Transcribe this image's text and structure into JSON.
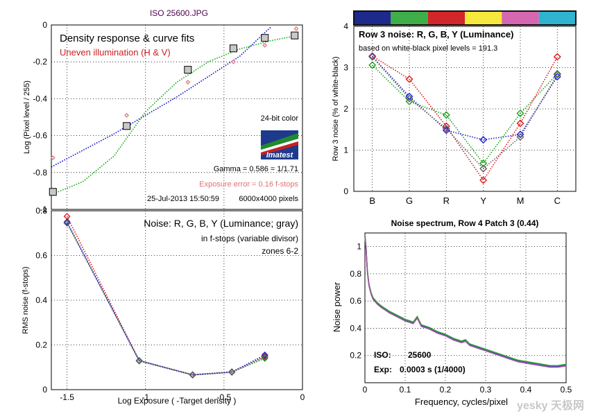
{
  "figure_title": "ISO 25600.JPG",
  "watermark": "yesky 天极网",
  "chart_data": [
    {
      "id": "density",
      "type": "scatter",
      "title": "Density response & curve fits",
      "subtitle": "Uneven illumination (H & V)",
      "xlabel": "",
      "ylabel": "Log (Pixel level / 255)",
      "xlim": [
        -1.6,
        0
      ],
      "ylim": [
        -1,
        0
      ],
      "xticks": [
        -1.5,
        -1,
        -0.5,
        0
      ],
      "yticks": [
        0,
        -0.2,
        -0.4,
        -0.6,
        -0.8,
        -1
      ],
      "grid": true,
      "points": {
        "name": "Measured zones",
        "x": [
          -1.59,
          -1.12,
          -0.73,
          -0.44,
          -0.24,
          -0.05
        ],
        "y": [
          -0.905,
          -0.548,
          -0.243,
          -0.127,
          -0.07,
          -0.057
        ]
      },
      "uneven_points": {
        "x": [
          -1.59,
          -1.12,
          -0.73,
          -0.44,
          -0.24,
          -0.04
        ],
        "y": [
          -0.72,
          -0.49,
          -0.31,
          -0.2,
          -0.11,
          -0.02
        ]
      },
      "fits": [
        {
          "style": "dotted",
          "color": "#0000cc",
          "x": [
            -1.6,
            -1.2,
            -0.8,
            -0.4,
            -0.2
          ],
          "y": [
            -0.77,
            -0.59,
            -0.39,
            -0.17,
            -0.01
          ]
        },
        {
          "style": "dotted",
          "color": "#00aa00",
          "x": [
            -1.6,
            -1.4,
            -1.2,
            -1.0,
            -0.8,
            -0.6,
            -0.4,
            -0.2,
            -0.05
          ],
          "y": [
            -0.92,
            -0.85,
            -0.71,
            -0.47,
            -0.31,
            -0.2,
            -0.13,
            -0.085,
            -0.06
          ]
        }
      ],
      "annotations": {
        "color_depth": "24-bit color",
        "gamma": "Gamma = 0.586 = 1/1.71",
        "exposure_error": "Exposure error = 0.16 f-stops",
        "timestamp": "25-Jul-2013 15:50:59",
        "pixels": "6000x4000 pixels",
        "logo": "Imatest"
      }
    },
    {
      "id": "row3",
      "type": "line",
      "title": "Row 3 noise: R, G, B, Y (Luminance)",
      "subtitle": "based on white-black pixel levels = 191.3",
      "xlabel": "",
      "ylabel": "Row 3 noise (% of white-black)",
      "categories": [
        "B",
        "G",
        "R",
        "Y",
        "M",
        "C"
      ],
      "ylim": [
        0,
        4
      ],
      "yticks": [
        0,
        1,
        2,
        3,
        4
      ],
      "grid": true,
      "swatch_colors": [
        "#1d2a8c",
        "#3fae49",
        "#d3262a",
        "#f6e83c",
        "#d566b0",
        "#2fb3cf"
      ],
      "series": [
        {
          "name": "R",
          "color": "#e01818",
          "values": [
            3.28,
            2.72,
            1.58,
            0.27,
            1.65,
            3.26
          ]
        },
        {
          "name": "G",
          "color": "#18a018",
          "values": [
            3.06,
            2.18,
            1.85,
            0.68,
            1.89,
            2.85
          ]
        },
        {
          "name": "B",
          "color": "#2020d8",
          "values": [
            3.27,
            2.3,
            1.48,
            1.25,
            1.38,
            2.78
          ]
        },
        {
          "name": "Y",
          "color": "#606060",
          "values": [
            3.26,
            2.25,
            1.52,
            0.55,
            1.32,
            2.83
          ]
        }
      ]
    },
    {
      "id": "fstop",
      "type": "line",
      "title": "Noise: R, G, B, Y (Luminance; gray)",
      "subtitle": "in f-stops (variable divisor)",
      "note": "zones 6-2",
      "xlabel": "Log Exposure ( -Target density )",
      "ylabel": "RMS noise (f-stops)",
      "xlim": [
        -1.6,
        0
      ],
      "ylim": [
        0,
        0.8
      ],
      "xticks": [
        -1.5,
        -1,
        -0.5,
        0
      ],
      "yticks": [
        0,
        0.2,
        0.4,
        0.6,
        0.8
      ],
      "grid": true,
      "x": [
        -1.5,
        -1.04,
        -0.7,
        -0.45,
        -0.24
      ],
      "series": [
        {
          "name": "R",
          "color": "#e01818",
          "values": [
            0.775,
            0.13,
            0.067,
            0.08,
            0.15
          ]
        },
        {
          "name": "G",
          "color": "#18a018",
          "values": [
            0.745,
            0.128,
            0.065,
            0.078,
            0.14
          ]
        },
        {
          "name": "B",
          "color": "#2020d8",
          "values": [
            0.75,
            0.13,
            0.066,
            0.079,
            0.155
          ]
        },
        {
          "name": "Y",
          "color": "#606060",
          "values": [
            0.745,
            0.13,
            0.066,
            0.078,
            0.145
          ]
        }
      ]
    },
    {
      "id": "spectrum",
      "type": "line",
      "title": "Noise spectrum, Row 4 Patch 3 (0.44)",
      "xlabel": "Frequency, cycles/pixel",
      "ylabel": "Noise power",
      "xlim": [
        0,
        0.5
      ],
      "ylim": [
        0,
        1.1
      ],
      "xticks": [
        0,
        0.1,
        0.2,
        0.3,
        0.4,
        0.5
      ],
      "yticks": [
        0.2,
        0.4,
        0.6,
        0.8,
        1
      ],
      "grid": true,
      "iso_label": "ISO:",
      "iso_value": "25600",
      "exp_label": "Exp:",
      "exp_value": "0.0003 s  (1/4000)",
      "series": [
        {
          "name": "spectrum",
          "color": "#3c50c8",
          "x": [
            0,
            0.003,
            0.006,
            0.01,
            0.015,
            0.02,
            0.03,
            0.04,
            0.05,
            0.06,
            0.08,
            0.1,
            0.12,
            0.13,
            0.14,
            0.16,
            0.18,
            0.2,
            0.22,
            0.24,
            0.25,
            0.26,
            0.28,
            0.3,
            0.32,
            0.34,
            0.36,
            0.38,
            0.4,
            0.42,
            0.44,
            0.46,
            0.48,
            0.5
          ],
          "y": [
            1.08,
            0.98,
            0.82,
            0.72,
            0.66,
            0.62,
            0.585,
            0.56,
            0.54,
            0.52,
            0.49,
            0.46,
            0.44,
            0.48,
            0.42,
            0.4,
            0.37,
            0.35,
            0.32,
            0.3,
            0.31,
            0.28,
            0.26,
            0.24,
            0.22,
            0.2,
            0.18,
            0.16,
            0.15,
            0.14,
            0.13,
            0.12,
            0.12,
            0.13
          ]
        }
      ]
    }
  ]
}
